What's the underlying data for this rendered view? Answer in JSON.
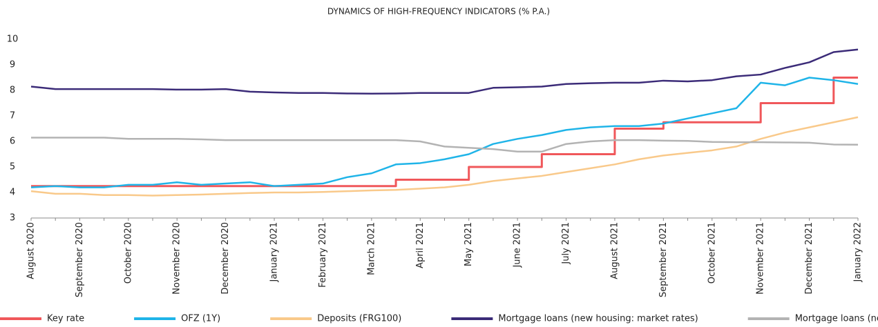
{
  "chart_data": {
    "type": "line",
    "title": "DYNAMICS OF HIGH-FREQUENCY INDICATORS (% P.A.)",
    "categories": [
      "August 2020",
      null,
      "September 2020",
      null,
      "October 2020",
      null,
      "November 2020",
      null,
      "December 2020",
      null,
      "January 2021",
      null,
      "February 2021",
      null,
      "March 2021",
      null,
      "April 2021",
      null,
      "May 2021",
      null,
      "June 2021",
      null,
      "July 2021",
      null,
      "August 2021",
      null,
      "September 2021",
      null,
      "October 2021",
      null,
      "November 2021",
      null,
      "December 2021",
      null,
      "January 2022"
    ],
    "ylim": [
      3,
      10
    ],
    "yticks": [
      3,
      4,
      5,
      6,
      7,
      8,
      9,
      10
    ],
    "grid": false,
    "legend": "bottom",
    "series": [
      {
        "name": "Key rate",
        "color": "#f0575a",
        "drawstyle": "steps-post",
        "values": [
          4.25,
          4.25,
          4.25,
          4.25,
          4.25,
          4.25,
          4.25,
          4.25,
          4.25,
          4.25,
          4.25,
          4.25,
          4.25,
          4.25,
          4.25,
          4.5,
          4.5,
          4.5,
          5.0,
          5.0,
          5.0,
          5.5,
          5.5,
          5.5,
          6.5,
          6.5,
          6.75,
          6.75,
          6.75,
          6.75,
          7.5,
          7.5,
          7.5,
          8.5,
          8.5
        ]
      },
      {
        "name": "OFZ (1Y)",
        "color": "#1fb4e8",
        "values": [
          4.2,
          4.25,
          4.2,
          4.2,
          4.3,
          4.3,
          4.4,
          4.3,
          4.35,
          4.4,
          4.25,
          4.3,
          4.35,
          4.6,
          4.75,
          5.1,
          5.15,
          5.3,
          5.5,
          5.9,
          6.1,
          6.25,
          6.45,
          6.55,
          6.6,
          6.6,
          6.7,
          6.9,
          7.1,
          7.3,
          8.3,
          8.2,
          8.5,
          8.4,
          8.25
        ]
      },
      {
        "name": "Deposits (FRG100)",
        "color": "#f9c98a",
        "values": [
          4.05,
          3.95,
          3.95,
          3.9,
          3.9,
          3.88,
          3.9,
          3.92,
          3.95,
          3.98,
          4.0,
          4.0,
          4.02,
          4.05,
          4.08,
          4.1,
          4.15,
          4.2,
          4.3,
          4.45,
          4.55,
          4.65,
          4.8,
          4.95,
          5.1,
          5.3,
          5.45,
          5.55,
          5.65,
          5.8,
          6.1,
          6.35,
          6.55,
          6.75,
          6.95
        ]
      },
      {
        "name": "Mortgage loans (new housing: market rates)",
        "color": "#3b2b78",
        "values": [
          8.15,
          8.05,
          8.05,
          8.05,
          8.05,
          8.05,
          8.03,
          8.03,
          8.05,
          7.95,
          7.92,
          7.9,
          7.9,
          7.88,
          7.87,
          7.88,
          7.9,
          7.9,
          7.9,
          8.1,
          8.12,
          8.15,
          8.25,
          8.28,
          8.3,
          8.3,
          8.38,
          8.35,
          8.4,
          8.55,
          8.62,
          8.88,
          9.1,
          9.5,
          9.6
        ]
      },
      {
        "name": "Mortgage loans (new housing: subsidised rates)",
        "color": "#b3b3b3",
        "values": [
          6.15,
          6.15,
          6.15,
          6.15,
          6.1,
          6.1,
          6.1,
          6.08,
          6.05,
          6.05,
          6.05,
          6.05,
          6.05,
          6.05,
          6.05,
          6.05,
          6.0,
          5.8,
          5.75,
          5.7,
          5.6,
          5.6,
          5.9,
          6.0,
          6.05,
          6.05,
          6.03,
          6.02,
          5.98,
          5.97,
          5.97,
          5.96,
          5.95,
          5.88,
          5.87
        ]
      }
    ]
  }
}
